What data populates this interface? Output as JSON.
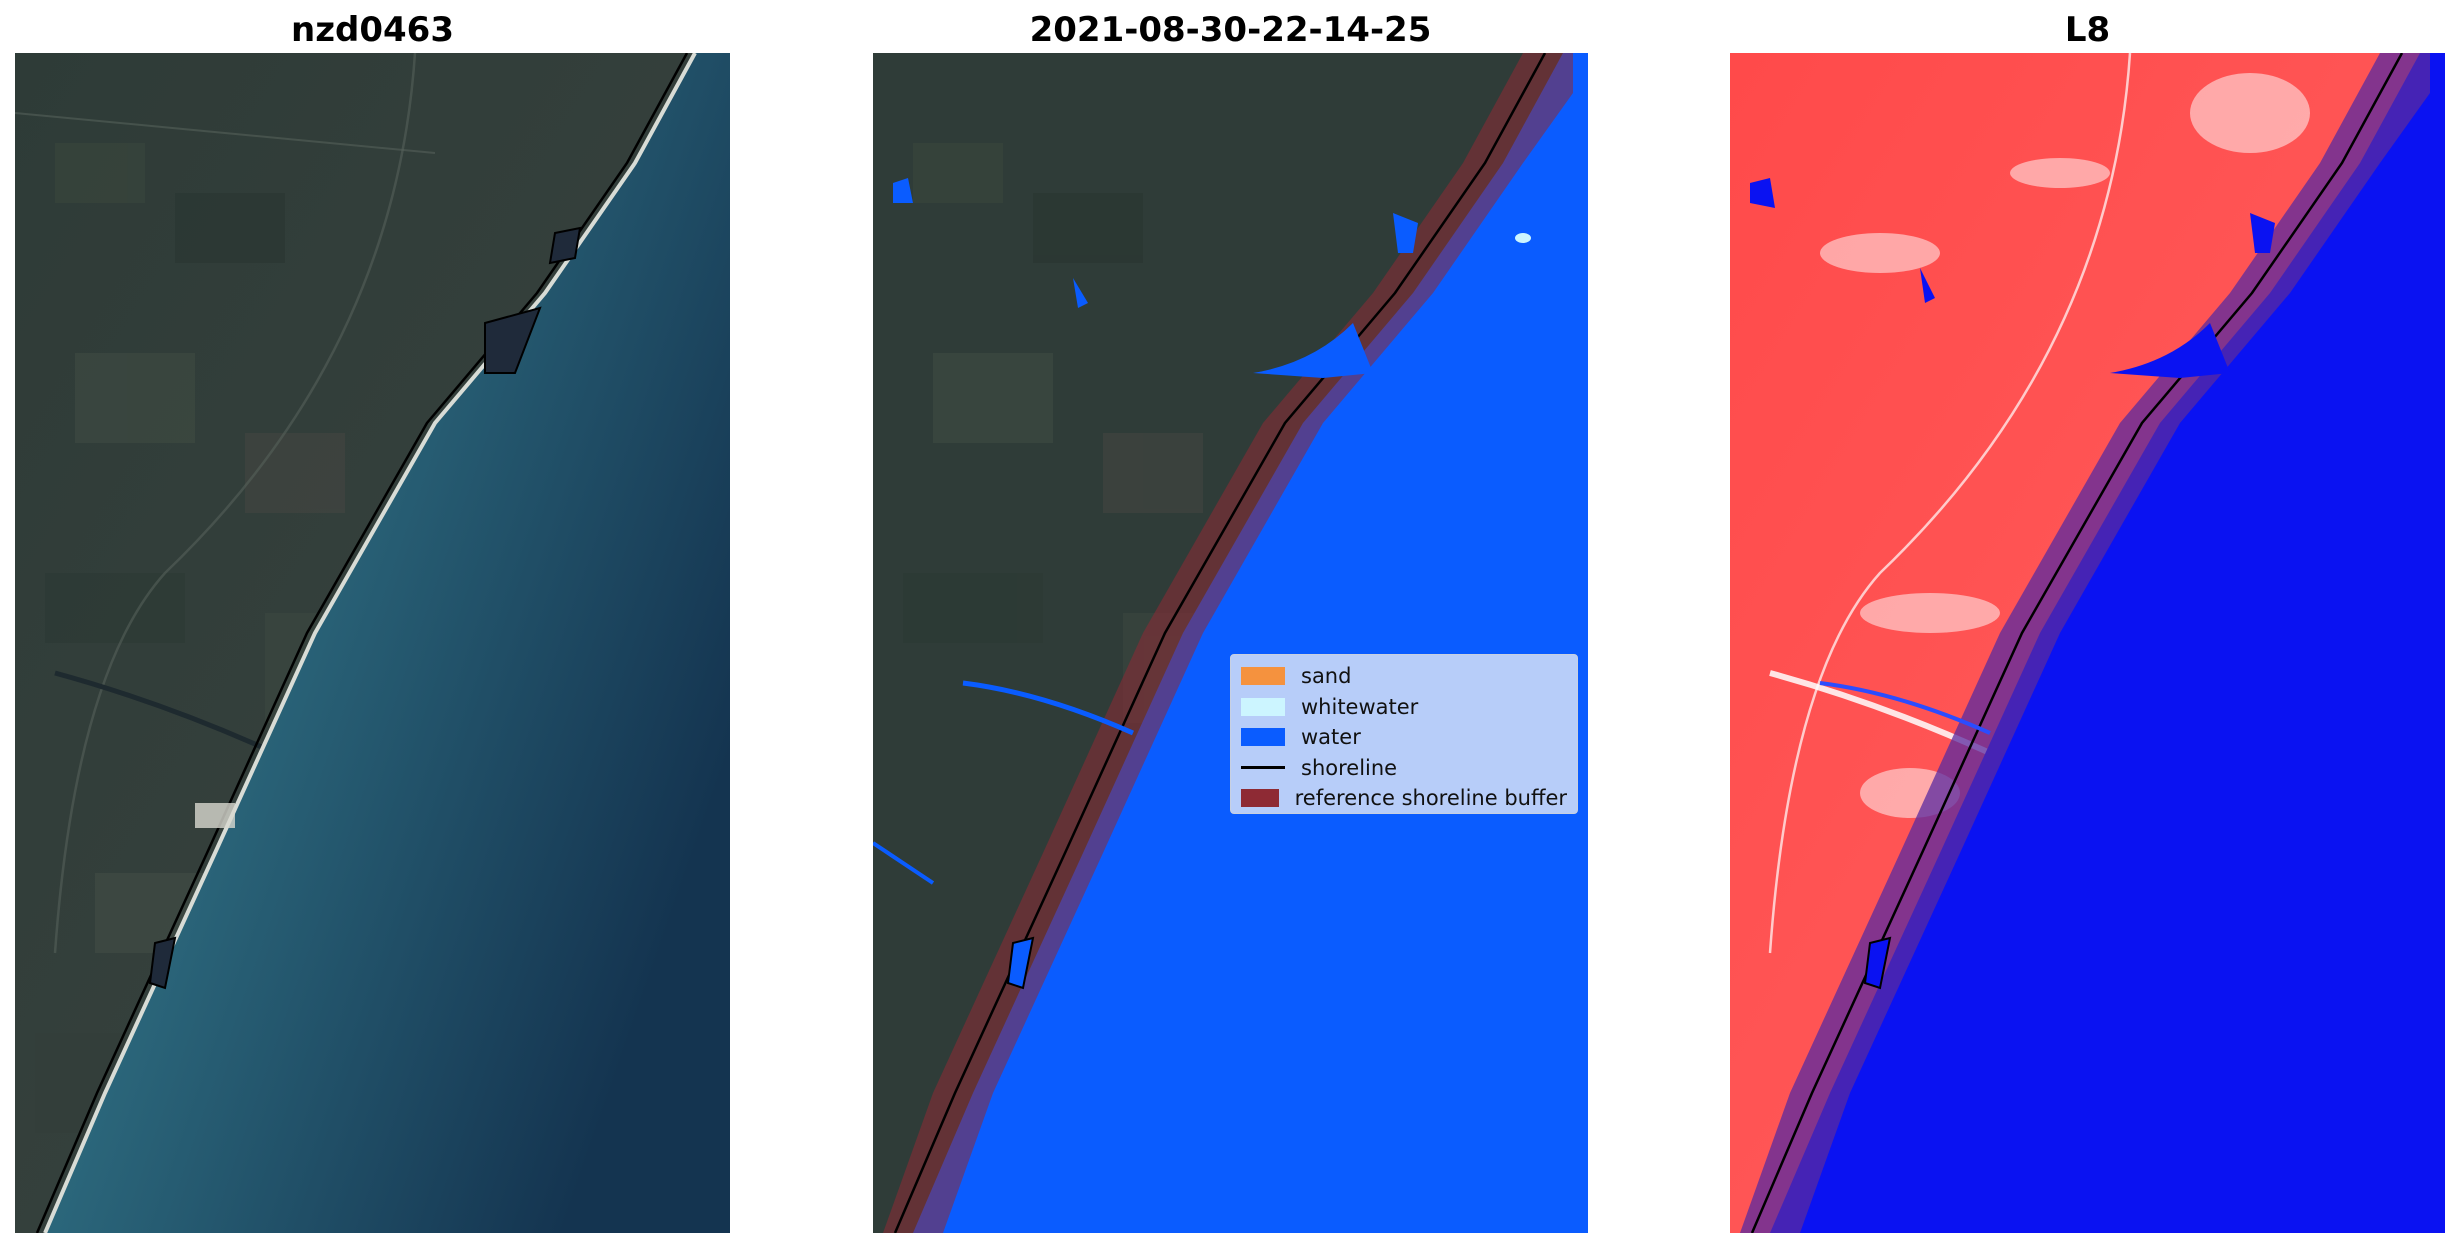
{
  "panels": [
    {
      "title": "nzd0463"
    },
    {
      "title": "2021-08-30-22-14-25"
    },
    {
      "title": "L8"
    }
  ],
  "legend": {
    "items": [
      {
        "label": "sand",
        "color": "#f5923e",
        "kind": "patch"
      },
      {
        "label": "whitewater",
        "color": "#ccf5ff",
        "kind": "patch"
      },
      {
        "label": "water",
        "color": "#0a5cff",
        "kind": "patch"
      },
      {
        "label": "shoreline",
        "color": "#000000",
        "kind": "line"
      },
      {
        "label": "reference shoreline buffer",
        "color": "#8e2a34",
        "kind": "patch"
      }
    ]
  },
  "colors": {
    "land": "#2f3d38",
    "sea_near": "#3f8a8f",
    "sea_far": "#153552",
    "classified_water": "#0a5cff",
    "buffer": "#8e2a34",
    "index_land": "#ff3b3b",
    "index_water": "#0a12f2"
  }
}
